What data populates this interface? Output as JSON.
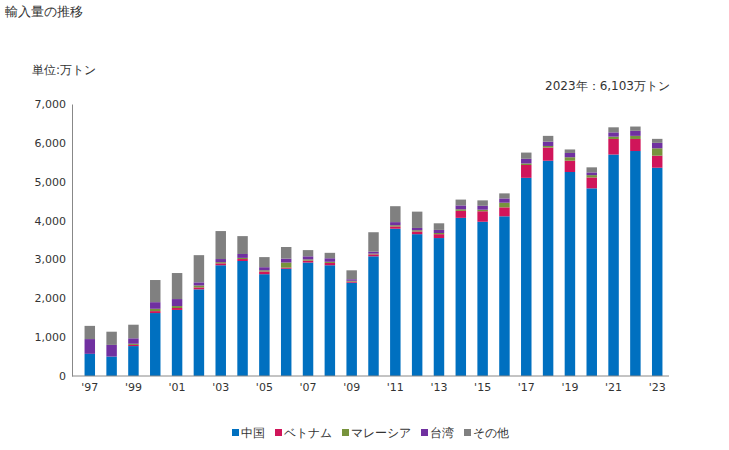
{
  "chart_data": {
    "type": "bar",
    "title": "輸入量の推移",
    "ylabel": "単位:万トン",
    "annotation": "2023年：6,103万トン",
    "stacked": true,
    "grid": false,
    "legend": "bottom",
    "categories": [
      "'97",
      null,
      "'99",
      null,
      "'01",
      null,
      "'03",
      null,
      "'05",
      null,
      "'07",
      null,
      "'09",
      null,
      "'11",
      null,
      "'13",
      null,
      "'15",
      null,
      "'17",
      null,
      "'19",
      null,
      "'21",
      null,
      "'23"
    ],
    "series": [
      {
        "name": "中国",
        "color": "#0070c0",
        "values": [
          570,
          500,
          770,
          1620,
          1700,
          2230,
          2850,
          2960,
          2620,
          2760,
          2920,
          2850,
          2400,
          3080,
          3790,
          3650,
          3550,
          4070,
          3970,
          4110,
          5100,
          5540,
          5250,
          4830,
          5700,
          5790,
          5360
        ]
      },
      {
        "name": "ベトナム",
        "color": "#d0155a",
        "values": [
          0,
          0,
          30,
          50,
          50,
          50,
          50,
          50,
          70,
          30,
          50,
          60,
          30,
          50,
          60,
          70,
          100,
          180,
          270,
          230,
          330,
          340,
          290,
          280,
          400,
          310,
          310
        ]
      },
      {
        "name": "マレーシア",
        "color": "#77933c",
        "values": [
          0,
          0,
          30,
          60,
          50,
          50,
          30,
          30,
          30,
          130,
          30,
          30,
          20,
          20,
          30,
          30,
          30,
          40,
          40,
          120,
          40,
          40,
          90,
          60,
          60,
          80,
          190
        ]
      },
      {
        "name": "台湾",
        "color": "#7030a0",
        "values": [
          380,
          300,
          140,
          170,
          180,
          80,
          80,
          100,
          80,
          100,
          80,
          90,
          40,
          50,
          80,
          60,
          80,
          100,
          100,
          110,
          120,
          110,
          110,
          70,
          110,
          130,
          140
        ]
      },
      {
        "name": "その他",
        "color": "#808080",
        "values": [
          340,
          340,
          350,
          570,
          670,
          700,
          720,
          460,
          260,
          300,
          160,
          140,
          230,
          500,
          410,
          420,
          170,
          150,
          140,
          130,
          160,
          150,
          90,
          130,
          130,
          110,
          103
        ]
      }
    ],
    "ylim": [
      0,
      7000
    ],
    "yticks": [
      0,
      {
        "value": 1000,
        "label": "1,000"
      },
      {
        "value": 2000,
        "label": "2,000"
      },
      {
        "value": 3000,
        "label": "3,000"
      },
      {
        "value": 4000,
        "label": "4,000"
      },
      {
        "value": 5000,
        "label": "5,000"
      },
      {
        "value": 6000,
        "label": "6,000"
      },
      {
        "value": 7000,
        "label": "7,000"
      }
    ]
  }
}
